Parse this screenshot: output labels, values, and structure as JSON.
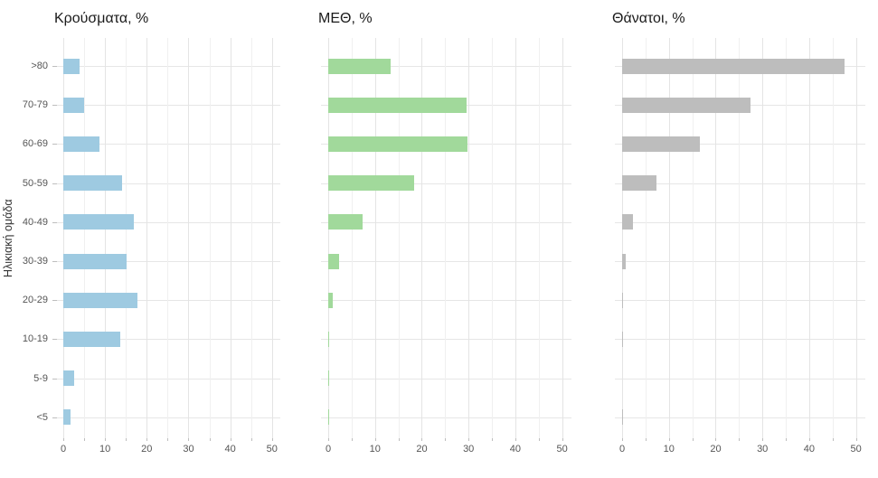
{
  "chart_data": {
    "type": "bar",
    "orientation": "horizontal",
    "title": "",
    "y_axis_title": "Ηλικιακή ομάδα",
    "categories": [
      ">80",
      "70-79",
      "60-69",
      "50-59",
      "40-49",
      "30-39",
      "20-29",
      "10-19",
      "5-9",
      "<5"
    ],
    "x_ticks": [
      0,
      10,
      20,
      30,
      40,
      50
    ],
    "x_minor_step": 5,
    "xlim": [
      0,
      52
    ],
    "grid": true,
    "legend": false,
    "panels": [
      {
        "title": "Κρούσματα, %",
        "color": "#9ECAE1",
        "values": [
          3.9,
          5.0,
          8.6,
          14.1,
          17.0,
          15.1,
          17.8,
          13.7,
          2.7,
          1.8
        ]
      },
      {
        "title": "ΜΕΘ, %",
        "color": "#A1D99B",
        "values": [
          13.4,
          29.6,
          29.8,
          18.3,
          7.3,
          2.4,
          0.9,
          0.2,
          0.15,
          0.2
        ]
      },
      {
        "title": "Θάνατοι, %",
        "color": "#BDBDBD",
        "values": [
          47.5,
          27.4,
          16.7,
          7.4,
          2.3,
          0.8,
          0.2,
          0.2,
          0,
          0.2
        ]
      }
    ],
    "colors": {
      "grid_major": "#E4E4E4",
      "grid_minor": "#F0F0F0",
      "grid_horizontal": "#E6E6E6",
      "tick": "#BEBEBE",
      "axis_text": "#555555",
      "title_text": "#1A1A1A"
    }
  }
}
